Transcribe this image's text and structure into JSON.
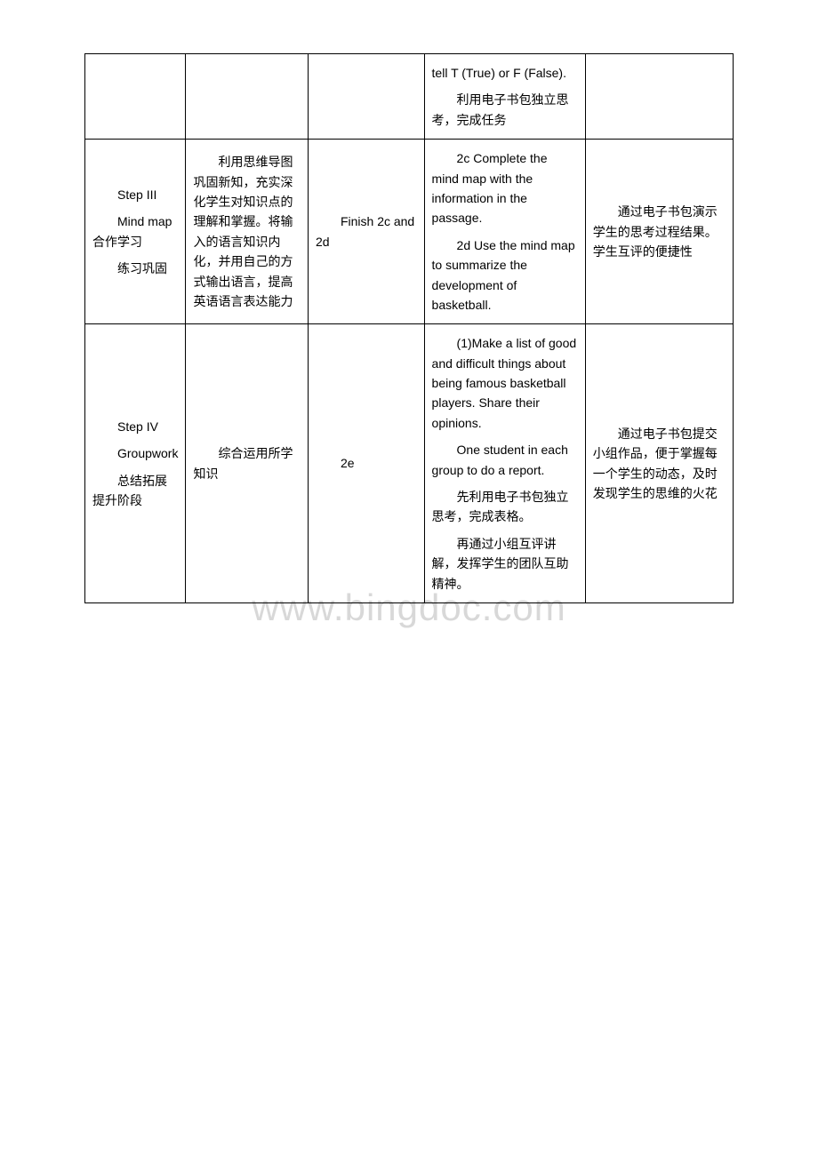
{
  "watermark_text": "www.bingdoc.com",
  "watermark_color": "#d8d8d8",
  "border_color": "#000000",
  "background_color": "#ffffff",
  "text_color": "#000000",
  "font_size": 14,
  "columns": {
    "col1_width": "15%",
    "col2_width": "19%",
    "col3_width": "18%",
    "col4_width": "25%",
    "col5_width": "23%"
  },
  "rows": [
    {
      "col1": "",
      "col2": "",
      "col3": "",
      "col4_p1": "tell T (True) or F (False).",
      "col4_p2": "利用电子书包独立思考，完成任务",
      "col5": ""
    },
    {
      "col1_p1": "Step III",
      "col1_p2": "Mind map合作学习",
      "col1_p3": "练习巩固",
      "col2": "利用思维导图巩固新知，充实深化学生对知识点的理解和掌握。将输入的语言知识内化，并用自己的方式输出语言，提高英语语言表达能力",
      "col3": "Finish 2c and 2d",
      "col4_p1": "2c Complete the mind map with the information in the passage.",
      "col4_p2": "2d Use the mind map to summarize the development of basketball.",
      "col5": "通过电子书包演示学生的思考过程结果。学生互评的便捷性"
    },
    {
      "col1_p1": "Step IV",
      "col1_p2": "Groupwork",
      "col1_p3": "总结拓展提升阶段",
      "col2": "综合运用所学知识",
      "col3": "2e",
      "col4_p1": "(1)Make a list of good and difficult things about being famous basketball players. Share their opinions.",
      "col4_p2": "One student in each group to do a report.",
      "col4_p3": "先利用电子书包独立思考，完成表格。",
      "col4_p4": "再通过小组互评讲解，发挥学生的团队互助精神。",
      "col5": "通过电子书包提交小组作品，便于掌握每一个学生的动态，及时发现学生的思维的火花"
    }
  ]
}
